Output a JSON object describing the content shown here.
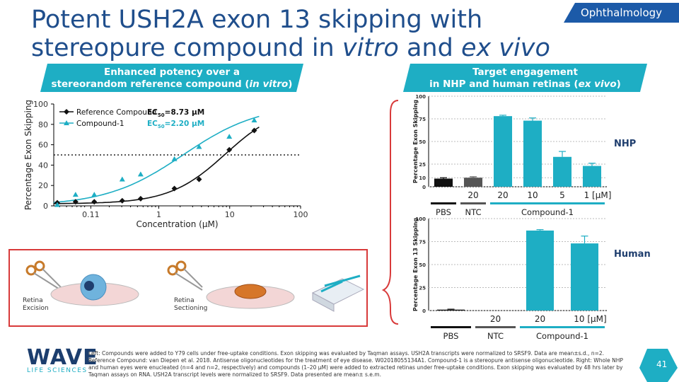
{
  "page": {
    "title_part1": "Potent USH2A exon 13 skipping with",
    "title_part2": "stereopure compound in ",
    "title_vitro": "vitro",
    "title_and": " and ",
    "title_vivo": "ex vivo",
    "tag": "Ophthalmology",
    "banner_left_line1": "Enhanced potency over a",
    "banner_left_line2": "stereorandom reference compound (",
    "banner_left_italic": "in vitro",
    "banner_left_end": ")",
    "banner_right_line1": "Target engagement",
    "banner_right_line2": "in NHP and human retinas (",
    "banner_right_italic": "ex vivo",
    "banner_right_end": ")",
    "nhp_label": "NHP",
    "human_label": "Human",
    "step1_label_l1": "Retina",
    "step1_label_l2": "Excision",
    "step2_label_l1": "Retina",
    "step2_label_l2": "Sectioning",
    "logo_main": "WAVE",
    "logo_sub": "LIFE SCIENCES",
    "page_number": "41",
    "footer_text": "Left: Compounds were added to Y79 cells under free-uptake conditions. Exon skipping was evaluated by Taqman assays. USH2A transcripts were normalized to SRSF9. Data are mean±s.d., n=2. Reference Compound: van Diepen et al. 2018. Antisense oligonucleotides for the treatment of eye disease. W02018055134A1. Compound-1 is a stereopure antisense oligonucleotide. Right: Whole NHP and human eyes were enucleated (n=4 and n=2, respectively) and compounds (1–20 μM) were added to extracted retinas under free-uptake conditions. Exon skipping was evaluated by 48 hrs later by Taqman assays on RNA. USH2A transcript levels were normalized to SRSF9. Data presented are mean± s.e.m.",
    "colors": {
      "title": "#1f4e8c",
      "teal": "#1eaec4",
      "black": "#111111",
      "gray": "#555555",
      "accent": "#1c5aa8",
      "bracket": "#d83a3a"
    }
  },
  "chart_data": [
    {
      "type": "scatter",
      "xscale": "log",
      "xlabel": "Concentration (μM)",
      "ylabel": "Percentage Exon Skipping",
      "xticks": [
        "0.11",
        "1",
        "10",
        "100"
      ],
      "xtick_values": [
        0.11,
        1,
        10,
        100
      ],
      "yticks": [
        "0",
        "20",
        "40",
        "60",
        "80",
        "100"
      ],
      "ylim": [
        0,
        100
      ],
      "threshold": 50,
      "series": [
        {
          "name": "Reference Compound",
          "ec50_label": "EC50=8.73 μM",
          "ec50_prefix": "EC",
          "ec50_sub": "50",
          "ec50_value": "=8.73 ",
          "ec50_unit": "μM",
          "color": "#111111",
          "x": [
            0.037,
            0.067,
            0.123,
            0.305,
            0.555,
            1.66,
            3.7,
            9.87,
            22.2
          ],
          "y": [
            3,
            4,
            4,
            5,
            7,
            17,
            26,
            55,
            74
          ]
        },
        {
          "name": "Compound-1",
          "ec50_label": "EC50=2.20 μM",
          "ec50_prefix": "EC",
          "ec50_sub": "50",
          "ec50_value": "=2.20 ",
          "ec50_unit": "μM",
          "color": "#1eaec4",
          "x": [
            0.037,
            0.067,
            0.123,
            0.305,
            0.555,
            1.66,
            3.7,
            9.87,
            22.2
          ],
          "y": [
            1,
            11,
            11,
            26,
            31,
            46,
            58,
            68,
            84
          ]
        }
      ]
    },
    {
      "type": "bar",
      "title": "NHP",
      "ylabel": "Percentage Exon Skipping",
      "yticks": [
        "0",
        "10",
        "25",
        "50",
        "75",
        "100"
      ],
      "ylim": [
        0,
        100
      ],
      "categories": [
        "",
        "20",
        "20",
        "10",
        "5",
        "1 [μM]"
      ],
      "values": [
        9,
        10,
        78,
        73,
        33,
        23
      ],
      "errors": [
        1,
        1,
        1,
        3,
        6,
        3
      ],
      "colors": [
        "#111111",
        "#555555",
        "#1eaec4",
        "#1eaec4",
        "#1eaec4",
        "#1eaec4"
      ],
      "groups": [
        "PBS",
        "NTC",
        "Compound-1"
      ]
    },
    {
      "type": "bar",
      "title": "Human",
      "ylabel": "Percentage Exon 13 Skipping",
      "yticks": [
        "0",
        "25",
        "50",
        "75",
        "100"
      ],
      "ylim": [
        0,
        100
      ],
      "categories": [
        "",
        "20",
        "20",
        "10 [μM]"
      ],
      "values": [
        1,
        0,
        87,
        73
      ],
      "errors": [
        0.5,
        0,
        1,
        8
      ],
      "colors": [
        "#111111",
        "#555555",
        "#1eaec4",
        "#1eaec4"
      ],
      "groups": [
        "PBS",
        "NTC",
        "Compound-1"
      ]
    }
  ]
}
